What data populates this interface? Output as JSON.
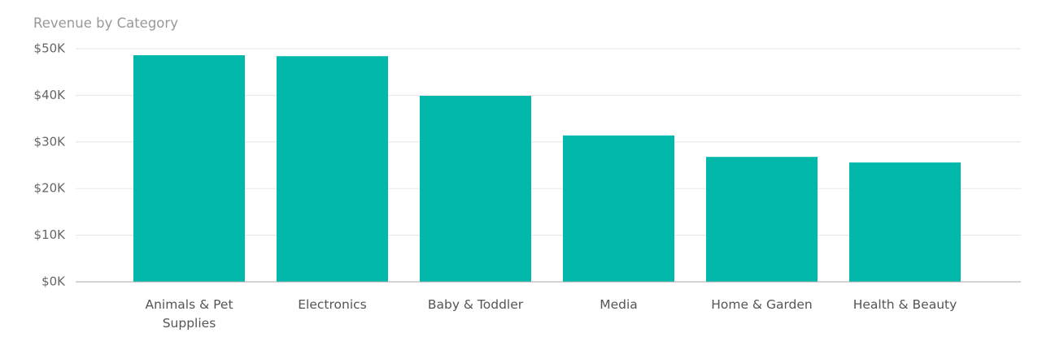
{
  "chart_data": {
    "type": "bar",
    "title": "Revenue by Category",
    "categories": [
      "Animals & Pet Supplies",
      "Electronics",
      "Baby & Toddler",
      "Media",
      "Home & Garden",
      "Health & Beauty"
    ],
    "values": [
      48600,
      48400,
      39900,
      31400,
      26800,
      25600
    ],
    "color": "#01b8aa",
    "ylim": [
      0,
      50000
    ],
    "yticks": [
      {
        "value": 0,
        "label": "$0K"
      },
      {
        "value": 10000,
        "label": "$10K"
      },
      {
        "value": 20000,
        "label": "$20K"
      },
      {
        "value": 30000,
        "label": "$30K"
      },
      {
        "value": 40000,
        "label": "$40K"
      },
      {
        "value": 50000,
        "label": "$50K"
      }
    ],
    "grid": true
  }
}
